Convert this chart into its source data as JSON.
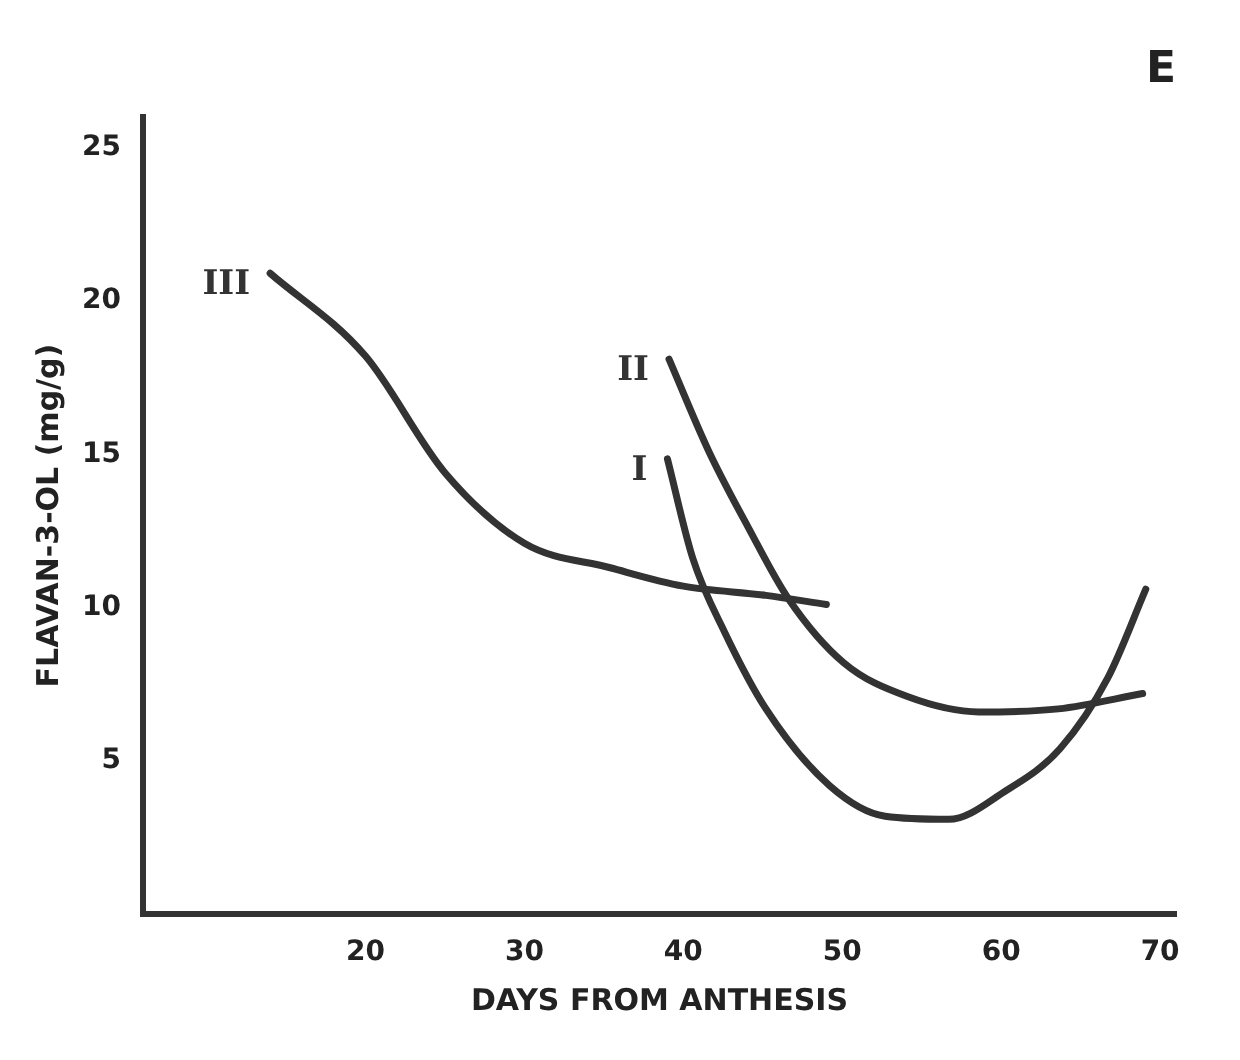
{
  "chart_data": {
    "type": "line",
    "title": "E",
    "xlabel": "DAYS FROM ANTHESIS",
    "ylabel": "FLAVAN-3-OL (mg/g)",
    "xlim": [
      6,
      71
    ],
    "xticks": [
      20,
      30,
      40,
      50,
      60,
      70
    ],
    "ylim": [
      0,
      26
    ],
    "yticks": [
      5,
      10,
      15,
      20,
      25
    ],
    "grid": false,
    "legend": false,
    "marker": "none",
    "line_style": "solid",
    "series": [
      {
        "name": "I",
        "color": "#333333",
        "x": [
          39,
          40.6,
          42.6,
          45.2,
          49.2,
          52.7,
          56.7,
          60.2,
          63.7,
          66.7,
          69.1
        ],
        "values": [
          14.85,
          11.6,
          9.2,
          6.7,
          4.2,
          3.2,
          3.1,
          4.0,
          5.4,
          7.7,
          10.6
        ]
      },
      {
        "name": "II",
        "color": "#333333",
        "x": [
          39.1,
          41.6,
          44.1,
          46.6,
          50.1,
          54.1,
          58.6,
          63.6,
          68.9
        ],
        "values": [
          18.1,
          15.1,
          12.6,
          10.3,
          8.2,
          7.1,
          6.6,
          6.7,
          7.2
        ]
      },
      {
        "name": "III",
        "color": "#333333",
        "x": [
          14,
          20,
          25,
          30,
          35.4,
          40,
          45.2,
          49
        ],
        "values": [
          20.9,
          18.2,
          14.4,
          12.1,
          11.3,
          10.7,
          10.4,
          10.1
        ]
      }
    ]
  }
}
